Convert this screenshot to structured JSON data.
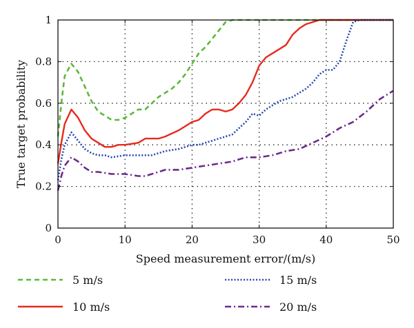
{
  "chart_data": {
    "type": "line",
    "title": "",
    "xlabel": "Speed measurement error/(m/s)",
    "ylabel": "True target probability",
    "xlim": [
      0,
      50
    ],
    "ylim": [
      0,
      1
    ],
    "xticks": [
      0,
      10,
      20,
      30,
      40,
      50
    ],
    "yticks": [
      0,
      0.2,
      0.4,
      0.6,
      0.8,
      1
    ],
    "xtick_labels": [
      "0",
      "10",
      "20",
      "30",
      "40",
      "50"
    ],
    "ytick_labels": [
      "0",
      "0.2",
      "0.4",
      "0.6",
      "0.8",
      "1"
    ],
    "grid": true,
    "legend_position": "below",
    "series": [
      {
        "name": "5 m/s",
        "color": "#5cb83a",
        "dash": "dashed",
        "x": [
          0,
          0.5,
          1,
          2,
          3,
          4,
          5,
          6,
          7,
          8,
          9,
          10,
          11,
          12,
          13,
          14,
          15,
          16,
          17,
          18,
          19,
          20,
          21,
          22,
          23,
          24,
          25,
          26,
          30,
          35,
          40,
          45,
          50
        ],
        "y": [
          0.44,
          0.6,
          0.73,
          0.79,
          0.75,
          0.68,
          0.61,
          0.56,
          0.54,
          0.52,
          0.52,
          0.53,
          0.55,
          0.57,
          0.57,
          0.6,
          0.63,
          0.65,
          0.67,
          0.7,
          0.74,
          0.79,
          0.84,
          0.87,
          0.91,
          0.95,
          0.99,
          1.0,
          1.0,
          1.0,
          1.0,
          1.0,
          1.0
        ]
      },
      {
        "name": "10 m/s",
        "color": "#e8291c",
        "dash": "solid",
        "x": [
          0,
          0.5,
          1,
          2,
          3,
          4,
          5,
          6,
          7,
          8,
          9,
          10,
          12,
          13,
          14,
          15,
          16,
          18,
          20,
          21,
          22,
          23,
          24,
          25,
          26,
          27,
          28,
          29,
          30,
          31,
          32,
          33,
          34,
          35,
          36,
          37,
          38,
          39,
          40,
          45,
          50
        ],
        "y": [
          0.31,
          0.41,
          0.5,
          0.57,
          0.53,
          0.47,
          0.43,
          0.41,
          0.39,
          0.39,
          0.4,
          0.4,
          0.41,
          0.43,
          0.43,
          0.43,
          0.44,
          0.47,
          0.51,
          0.52,
          0.55,
          0.57,
          0.57,
          0.56,
          0.57,
          0.6,
          0.64,
          0.7,
          0.78,
          0.82,
          0.84,
          0.86,
          0.88,
          0.93,
          0.96,
          0.98,
          0.99,
          1.0,
          1.0,
          1.0,
          1.0
        ]
      },
      {
        "name": "15 m/s",
        "color": "#2744b3",
        "dash": "dotted",
        "x": [
          0,
          0.5,
          1,
          2,
          3,
          4,
          5,
          6,
          7,
          8,
          10,
          12,
          14,
          15,
          16,
          18,
          20,
          21,
          22,
          23,
          24,
          25,
          26,
          27,
          28,
          29,
          30,
          31,
          32,
          33,
          34,
          35,
          36,
          37,
          38,
          39,
          40,
          41,
          42,
          43,
          44,
          45,
          50
        ],
        "y": [
          0.23,
          0.33,
          0.4,
          0.46,
          0.42,
          0.38,
          0.36,
          0.35,
          0.35,
          0.34,
          0.35,
          0.35,
          0.35,
          0.36,
          0.37,
          0.38,
          0.4,
          0.4,
          0.41,
          0.42,
          0.43,
          0.44,
          0.45,
          0.48,
          0.51,
          0.55,
          0.54,
          0.57,
          0.59,
          0.61,
          0.62,
          0.63,
          0.65,
          0.67,
          0.7,
          0.74,
          0.76,
          0.76,
          0.8,
          0.9,
          0.99,
          1.0,
          1.0
        ]
      },
      {
        "name": "20 m/s",
        "color": "#6b2a8c",
        "dash": "dashdot",
        "x": [
          0,
          0.5,
          1,
          2,
          3,
          4,
          5,
          6,
          8,
          10,
          12,
          13,
          14,
          15,
          16,
          18,
          20,
          22,
          24,
          26,
          27,
          28,
          30,
          32,
          34,
          36,
          38,
          40,
          42,
          44,
          46,
          48,
          50
        ],
        "y": [
          0.18,
          0.25,
          0.3,
          0.34,
          0.32,
          0.29,
          0.27,
          0.27,
          0.26,
          0.26,
          0.25,
          0.25,
          0.26,
          0.27,
          0.28,
          0.28,
          0.29,
          0.3,
          0.31,
          0.32,
          0.33,
          0.34,
          0.34,
          0.35,
          0.37,
          0.38,
          0.41,
          0.44,
          0.48,
          0.51,
          0.56,
          0.62,
          0.66
        ]
      }
    ]
  }
}
